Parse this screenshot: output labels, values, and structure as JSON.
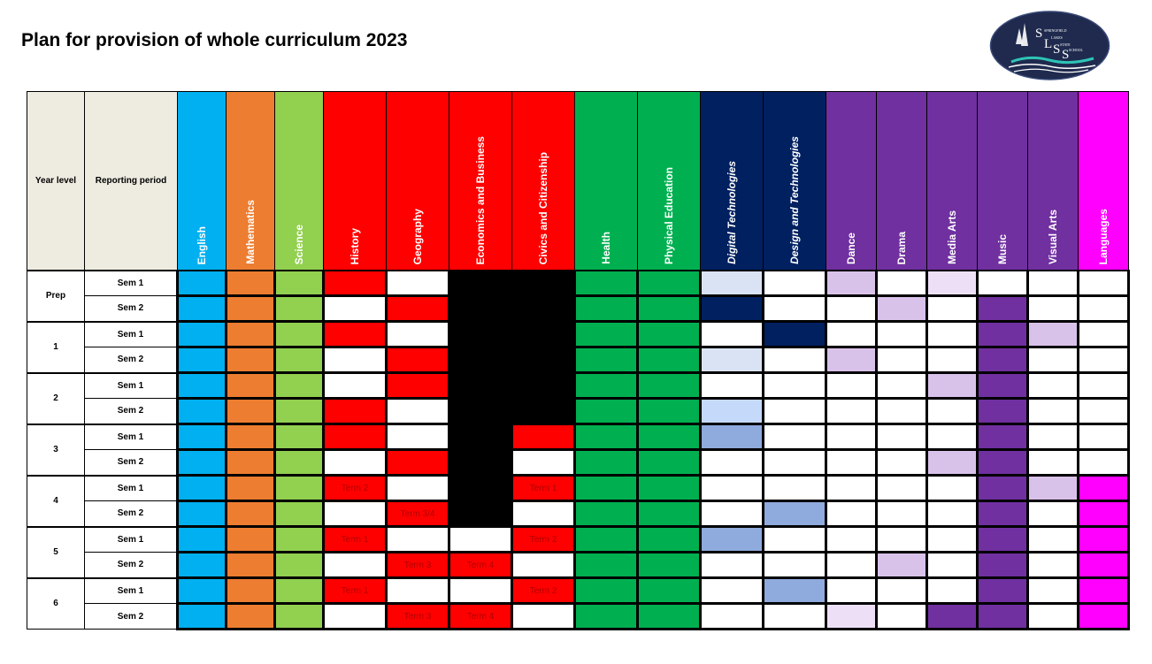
{
  "title": "Plan for provision of whole curriculum 2023",
  "logo": {
    "letters": [
      "S",
      "L",
      "S",
      "S"
    ],
    "text": "SPRINGFIELD LAKES STATE SCHOOL"
  },
  "headers": {
    "year_level": "Year level",
    "reporting_period": "Reporting period"
  },
  "subjects": [
    {
      "name": "English",
      "color": "#00b0f0",
      "italic": false
    },
    {
      "name": "Mathematics",
      "color": "#ed7d31",
      "italic": false
    },
    {
      "name": "Science",
      "color": "#92d050",
      "italic": false
    },
    {
      "name": "History",
      "color": "#ff0000",
      "italic": false
    },
    {
      "name": "Geography",
      "color": "#ff0000",
      "italic": false
    },
    {
      "name": "Economics and Business",
      "color": "#ff0000",
      "italic": false
    },
    {
      "name": "Civics and Citizenship",
      "color": "#ff0000",
      "italic": false
    },
    {
      "name": "Health",
      "color": "#00b050",
      "italic": false
    },
    {
      "name": "Physical Education",
      "color": "#00b050",
      "italic": false
    },
    {
      "name": "Digital Technologies",
      "color": "#002060",
      "italic": true
    },
    {
      "name": "Design and Technologies",
      "color": "#002060",
      "italic": true
    },
    {
      "name": "Dance",
      "color": "#7030a0",
      "italic": false
    },
    {
      "name": "Drama",
      "color": "#7030a0",
      "italic": false
    },
    {
      "name": "Media Arts",
      "color": "#7030a0",
      "italic": false
    },
    {
      "name": "Music",
      "color": "#7030a0",
      "italic": false
    },
    {
      "name": "Visual Arts",
      "color": "#7030a0",
      "italic": false
    },
    {
      "name": "Languages",
      "color": "#ff00ff",
      "italic": false
    }
  ],
  "colors": {
    "E": "#00b0f0",
    "O": "#ed7d31",
    "G": "#92d050",
    "R": "#ff0000",
    "W": "#ffffff",
    "K": "#000000",
    "N": "#00b050",
    "D": "#002060",
    "L": "#dae3f3",
    "B": "#8faadc",
    "C": "#c5d9fb",
    "P": "#d9c2ea",
    "Q": "#ede0f6",
    "V": "#7030a0",
    "M": "#ff00ff"
  },
  "rows": [
    {
      "year": "Prep",
      "period": "Sem 1",
      "cells": [
        "E",
        "O",
        "G",
        "R",
        "W",
        "K",
        "K",
        "N",
        "N",
        "L",
        "W",
        "P",
        "W",
        "Q",
        "W",
        "W",
        "W"
      ],
      "notes": {}
    },
    {
      "year": "",
      "period": "Sem 2",
      "cells": [
        "E",
        "O",
        "G",
        "W",
        "R",
        "K",
        "K",
        "N",
        "N",
        "D",
        "W",
        "W",
        "P",
        "W",
        "V",
        "W",
        "W"
      ],
      "notes": {}
    },
    {
      "year": "1",
      "period": "Sem 1",
      "cells": [
        "E",
        "O",
        "G",
        "R",
        "W",
        "K",
        "K",
        "N",
        "N",
        "W",
        "D",
        "W",
        "W",
        "W",
        "V",
        "P",
        "W"
      ],
      "notes": {}
    },
    {
      "year": "",
      "period": "Sem 2",
      "cells": [
        "E",
        "O",
        "G",
        "W",
        "R",
        "K",
        "K",
        "N",
        "N",
        "L",
        "W",
        "P",
        "W",
        "W",
        "V",
        "W",
        "W"
      ],
      "notes": {}
    },
    {
      "year": "2",
      "period": "Sem 1",
      "cells": [
        "E",
        "O",
        "G",
        "W",
        "R",
        "K",
        "K",
        "N",
        "N",
        "W",
        "W",
        "W",
        "W",
        "P",
        "V",
        "W",
        "W"
      ],
      "notes": {}
    },
    {
      "year": "",
      "period": "Sem 2",
      "cells": [
        "E",
        "O",
        "G",
        "R",
        "W",
        "K",
        "K",
        "N",
        "N",
        "C",
        "W",
        "W",
        "W",
        "W",
        "V",
        "W",
        "W"
      ],
      "notes": {}
    },
    {
      "year": "3",
      "period": "Sem 1",
      "cells": [
        "E",
        "O",
        "G",
        "R",
        "W",
        "K",
        "R",
        "N",
        "N",
        "B",
        "W",
        "W",
        "W",
        "W",
        "V",
        "W",
        "W"
      ],
      "notes": {}
    },
    {
      "year": "",
      "period": "Sem 2",
      "cells": [
        "E",
        "O",
        "G",
        "W",
        "R",
        "K",
        "W",
        "N",
        "N",
        "W",
        "W",
        "W",
        "W",
        "P",
        "V",
        "W",
        "W"
      ],
      "notes": {}
    },
    {
      "year": "4",
      "period": "Sem 1",
      "cells": [
        "E",
        "O",
        "G",
        "R",
        "W",
        "K",
        "R",
        "N",
        "N",
        "W",
        "W",
        "W",
        "W",
        "W",
        "V",
        "P",
        "M"
      ],
      "notes": {
        "3": "Term 2",
        "6": "Term 1"
      }
    },
    {
      "year": "",
      "period": "Sem 2",
      "cells": [
        "E",
        "O",
        "G",
        "W",
        "R",
        "K",
        "W",
        "N",
        "N",
        "W",
        "B",
        "W",
        "W",
        "W",
        "V",
        "W",
        "M"
      ],
      "notes": {
        "4": "Term 3/4"
      }
    },
    {
      "year": "5",
      "period": "Sem 1",
      "cells": [
        "E",
        "O",
        "G",
        "R",
        "W",
        "W",
        "R",
        "N",
        "N",
        "B",
        "W",
        "W",
        "W",
        "W",
        "V",
        "W",
        "M"
      ],
      "notes": {
        "3": "Term 1",
        "6": "Term 2"
      }
    },
    {
      "year": "",
      "period": "Sem 2",
      "cells": [
        "E",
        "O",
        "G",
        "W",
        "R",
        "R",
        "W",
        "N",
        "N",
        "W",
        "W",
        "W",
        "P",
        "W",
        "V",
        "W",
        "M"
      ],
      "notes": {
        "4": "Term 3",
        "5": "Term 4"
      }
    },
    {
      "year": "6",
      "period": "Sem 1",
      "cells": [
        "E",
        "O",
        "G",
        "R",
        "W",
        "W",
        "R",
        "N",
        "N",
        "W",
        "B",
        "W",
        "W",
        "W",
        "V",
        "W",
        "M"
      ],
      "notes": {
        "3": "Term 1",
        "6": "Term 2"
      }
    },
    {
      "year": "",
      "period": "Sem 2",
      "cells": [
        "E",
        "O",
        "G",
        "W",
        "R",
        "R",
        "W",
        "N",
        "N",
        "W",
        "W",
        "Q",
        "W",
        "V",
        "V",
        "W",
        "M"
      ],
      "notes": {
        "4": "Term 3",
        "5": "Term 4"
      }
    }
  ]
}
